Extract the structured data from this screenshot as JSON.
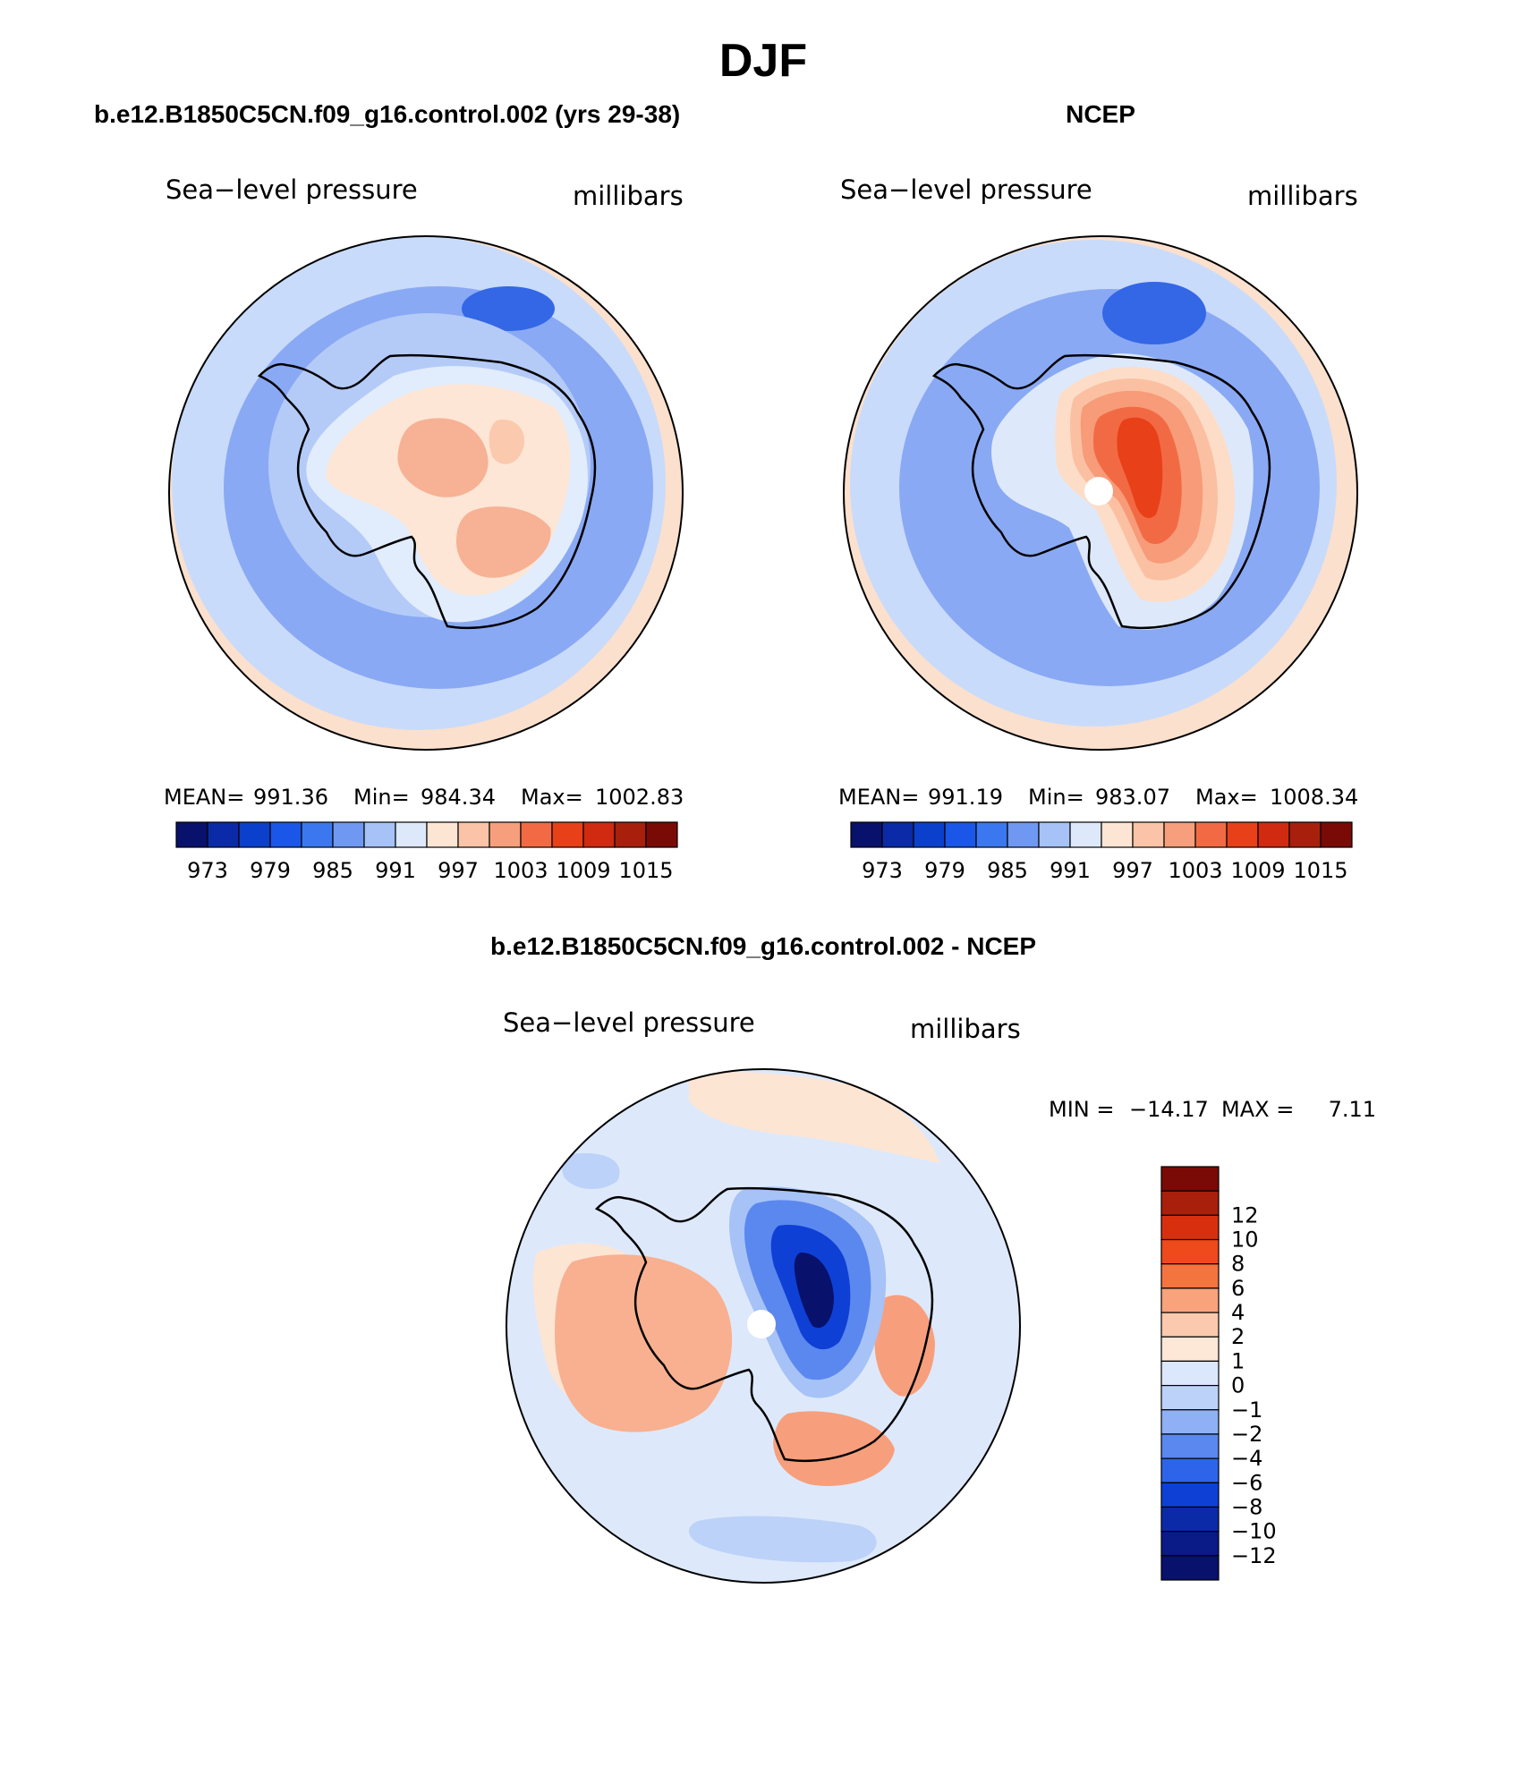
{
  "page": {
    "title": "DJF"
  },
  "chart_data": [
    {
      "type": "heatmap",
      "projection": "south polar stereographic",
      "panel_title": "b.e12.B1850C5CN.f09_g16.control.002 (yrs 29-38)",
      "left_label": "Sea−level pressure",
      "right_label": "millibars",
      "stats": {
        "mean_label": "MEAN=",
        "mean": "991.36",
        "min_label": "Min=",
        "min": "984.34",
        "max_label": "Max=",
        "max": "1002.83"
      },
      "colorbar": {
        "orientation": "horizontal",
        "colors": [
          "#08116b",
          "#0a2aa8",
          "#0b40cc",
          "#1a57e8",
          "#3b78f0",
          "#6f98f2",
          "#a6c2f7",
          "#dde9fb",
          "#fde5d4",
          "#fbc3a7",
          "#f79f7c",
          "#f26a44",
          "#e84018",
          "#d02a10",
          "#a8200c",
          "#7a0a06"
        ],
        "labels": [
          "973",
          "979",
          "985",
          "991",
          "997",
          "1003",
          "1009",
          "1015"
        ]
      },
      "field": {
        "continent": "#fbd5bf",
        "ocean_ring": "#7e9ff2",
        "outer": "#c6d8fa",
        "rim": "#fbe6d6"
      }
    },
    {
      "type": "heatmap",
      "projection": "south polar stereographic",
      "panel_title": "NCEP",
      "left_label": "Sea−level pressure",
      "right_label": "millibars",
      "stats": {
        "mean_label": "MEAN=",
        "mean": "991.19",
        "min_label": "Min=",
        "min": "983.07",
        "max_label": "Max=",
        "max": "1008.34"
      },
      "colorbar": {
        "orientation": "horizontal",
        "colors": [
          "#08116b",
          "#0a2aa8",
          "#0b40cc",
          "#1a57e8",
          "#3b78f0",
          "#6f98f2",
          "#a6c2f7",
          "#dde9fb",
          "#fde5d4",
          "#fbc3a7",
          "#f79f7c",
          "#f26a44",
          "#e84018",
          "#d02a10",
          "#a8200c",
          "#7a0a06"
        ],
        "labels": [
          "973",
          "979",
          "985",
          "991",
          "997",
          "1003",
          "1009",
          "1015"
        ]
      },
      "field": {
        "continent": "#f58a60",
        "ocean_ring": "#7e9ff2",
        "outer": "#c6d8fa",
        "rim": "#fbe6d6"
      }
    },
    {
      "type": "heatmap",
      "projection": "south polar stereographic",
      "panel_title": "b.e12.B1850C5CN.f09_g16.control.002 - NCEP",
      "left_label": "Sea−level pressure",
      "right_label": "millibars",
      "stats": {
        "min_label": "MIN =",
        "min": "−14.17",
        "max_label": "MAX =",
        "max": "7.11"
      },
      "colorbar": {
        "orientation": "vertical",
        "colors_top_to_bottom": [
          "#7a0a06",
          "#a8200c",
          "#d8300e",
          "#ee4a1c",
          "#f4743f",
          "#f8a37c",
          "#fbc9ad",
          "#fde7d6",
          "#dbe8fb",
          "#bcd2f8",
          "#8fb0f4",
          "#5b88ef",
          "#2d64ea",
          "#0e40d6",
          "#0b2aa8",
          "#0a1a86",
          "#08116b"
        ],
        "labels_top_to_bottom": [
          "12",
          "10",
          "8",
          "6",
          "4",
          "2",
          "1",
          "0",
          "−1",
          "−2",
          "−4",
          "−6",
          "−8",
          "−10",
          "−12"
        ]
      },
      "field": {
        "west_antarctica": "#f8b090",
        "east_antarctica": "#3b6ef0",
        "outer": "#dde9fb"
      }
    }
  ]
}
